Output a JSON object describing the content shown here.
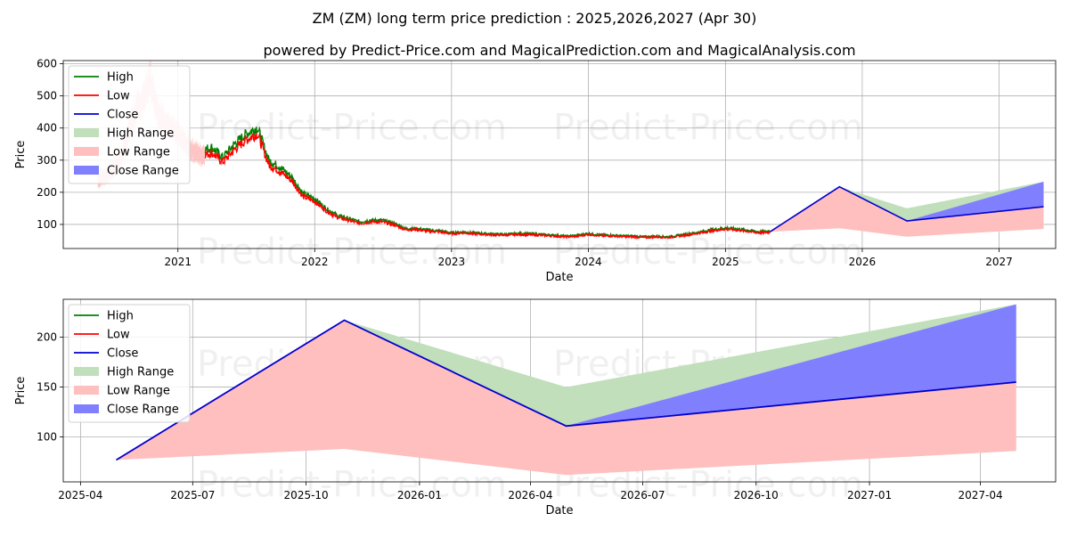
{
  "title": "ZM (ZM) long term price prediction : 2025,2026,2027 (Apr 30)",
  "subtitle": "powered by Predict-Price.com and MagicalPrediction.com and MagicalAnalysis.com",
  "watermark": "Predict-Price.com",
  "colors": {
    "high": "#008000",
    "low": "#ff0000",
    "close": "#0000cd",
    "high_range": "#c0dfba",
    "low_range": "#ffbfbf",
    "close_range": "#8080ff",
    "grid": "#b0b0b0"
  },
  "chart_data": [
    {
      "type": "line",
      "panel": "top",
      "xlabel": "Date",
      "ylabel": "Price",
      "xlim": [
        "2020-03-01",
        "2027-06-01"
      ],
      "ylim": [
        25,
        610
      ],
      "xticks": [
        "2021",
        "2022",
        "2023",
        "2024",
        "2025",
        "2026",
        "2027"
      ],
      "yticks": [
        100,
        200,
        300,
        400,
        500,
        600
      ],
      "grid": true,
      "legend": "top-left",
      "legend_entries": [
        "High",
        "Low",
        "Close",
        "High Range",
        "Low Range",
        "Close Range"
      ],
      "history_approx": {
        "dates": [
          "2020-06-01",
          "2020-07-01",
          "2020-08-01",
          "2020-09-01",
          "2020-10-01",
          "2020-10-20",
          "2020-11-10",
          "2020-12-01",
          "2021-01-01",
          "2021-02-01",
          "2021-03-01",
          "2021-04-01",
          "2021-05-01",
          "2021-06-01",
          "2021-07-01",
          "2021-08-01",
          "2021-09-01",
          "2021-10-01",
          "2021-11-01",
          "2021-12-01",
          "2022-01-01",
          "2022-02-01",
          "2022-03-01",
          "2022-04-01",
          "2022-05-01",
          "2022-06-01",
          "2022-07-01",
          "2022-08-01",
          "2022-09-01",
          "2022-10-01",
          "2022-11-01",
          "2022-12-01",
          "2023-01-01",
          "2023-02-01",
          "2023-03-01",
          "2023-04-01",
          "2023-05-01",
          "2023-06-01",
          "2023-07-01",
          "2023-08-01",
          "2023-09-01",
          "2023-10-01",
          "2023-11-01",
          "2023-12-01",
          "2024-01-01",
          "2024-02-01",
          "2024-03-01",
          "2024-04-01",
          "2024-05-01",
          "2024-06-01",
          "2024-07-01",
          "2024-08-01",
          "2024-09-01",
          "2024-10-01",
          "2024-11-01",
          "2024-12-01",
          "2025-01-01",
          "2025-02-01",
          "2025-03-01",
          "2025-04-01",
          "2025-04-30"
        ],
        "values": [
          240,
          260,
          300,
          430,
          500,
          560,
          450,
          420,
          380,
          340,
          320,
          330,
          300,
          340,
          370,
          390,
          290,
          270,
          240,
          190,
          175,
          145,
          125,
          115,
          105,
          110,
          110,
          100,
          85,
          85,
          80,
          78,
          72,
          75,
          72,
          70,
          68,
          68,
          70,
          69,
          67,
          65,
          62,
          64,
          70,
          66,
          65,
          63,
          62,
          60,
          62,
          60,
          65,
          70,
          76,
          82,
          87,
          84,
          80,
          75,
          77
        ]
      }
    },
    {
      "type": "area",
      "panel": "bottom",
      "xlabel": "Date",
      "ylabel": "Price",
      "xlim": [
        "2025-03-18",
        "2027-06-01"
      ],
      "ylim": [
        55,
        238
      ],
      "xticks": [
        "2025-04",
        "2025-07",
        "2025-10",
        "2026-01",
        "2026-04",
        "2026-07",
        "2026-10",
        "2027-01",
        "2027-04"
      ],
      "yticks": [
        100,
        150,
        200
      ],
      "grid": true,
      "legend": "top-left",
      "legend_entries": [
        "High",
        "Low",
        "Close",
        "High Range",
        "Low Range",
        "Close Range"
      ],
      "x": [
        "2025-04-30",
        "2025-11-01",
        "2026-04-30",
        "2027-04-30"
      ],
      "series": [
        {
          "name": "Close",
          "values": [
            77,
            217,
            111,
            155
          ]
        },
        {
          "name": "High Range",
          "values": [
            77,
            217,
            150,
            233
          ]
        },
        {
          "name": "Low Range",
          "values": [
            77,
            88,
            62,
            86
          ]
        },
        {
          "name": "Close Range",
          "values": [
            77,
            217,
            111,
            233
          ]
        }
      ]
    }
  ]
}
